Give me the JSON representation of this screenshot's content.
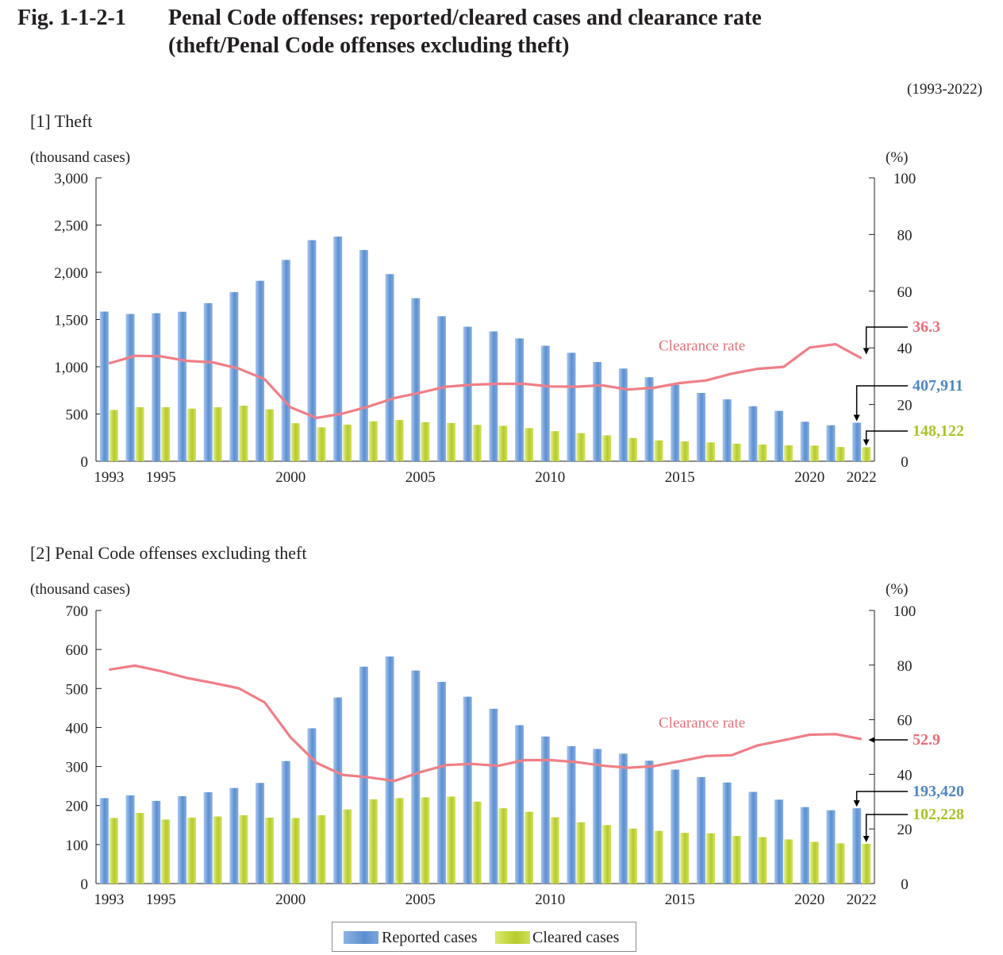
{
  "figure": {
    "number": "Fig. 1-1-2-1",
    "title_line1": "Penal Code offenses: reported/cleared cases and clearance rate",
    "title_line2": "(theft/Penal Code offenses excluding theft)",
    "period": "(1993-2022)"
  },
  "legend": {
    "reported": "Reported cases",
    "cleared": "Cleared cases"
  },
  "colors": {
    "reported": "#6f9fd8",
    "cleared": "#c2d63a",
    "rate": "#ef7f87",
    "reported_label": "#4f86c6",
    "cleared_label": "#a9c424",
    "rate_label": "#ea6d78"
  },
  "chart_data": [
    {
      "type": "bar",
      "panel_title": "[1] Theft",
      "left_unit": "(thousand cases)",
      "right_unit": "(%)",
      "ylim": [
        0,
        3000
      ],
      "ylim_right": [
        0,
        100
      ],
      "y_ticks": [
        "0",
        "500",
        "1,000",
        "1,500",
        "2,000",
        "2,500",
        "3,000"
      ],
      "y_right_ticks": [
        "0",
        "20",
        "40",
        "60",
        "80",
        "100"
      ],
      "x_tick_labels": [
        "1993",
        "1995",
        "2000",
        "2005",
        "2010",
        "2015",
        "2020",
        "2022"
      ],
      "categories": [
        1993,
        1994,
        1995,
        1996,
        1997,
        1998,
        1999,
        2000,
        2001,
        2002,
        2003,
        2004,
        2005,
        2006,
        2007,
        2008,
        2009,
        2010,
        2011,
        2012,
        2013,
        2014,
        2015,
        2016,
        2017,
        2018,
        2019,
        2020,
        2021,
        2022
      ],
      "series": [
        {
          "name": "Reported cases",
          "values": [
            1584,
            1559,
            1567,
            1582,
            1673,
            1790,
            1910,
            2131,
            2340,
            2378,
            2236,
            1981,
            1726,
            1535,
            1424,
            1374,
            1300,
            1222,
            1148,
            1050,
            981,
            889,
            808,
            723,
            655,
            582,
            533,
            418,
            381,
            408
          ]
        },
        {
          "name": "Cleared cases",
          "values": [
            542,
            572,
            572,
            557,
            571,
            588,
            550,
            402,
            359,
            388,
            423,
            437,
            413,
            405,
            385,
            375,
            350,
            318,
            298,
            274,
            246,
            221,
            210,
            199,
            186,
            177,
            168,
            165,
            150,
            148
          ]
        },
        {
          "name": "Clearance rate",
          "axis": "right",
          "values": [
            34.5,
            37.2,
            37.0,
            35.4,
            34.9,
            32.7,
            28.9,
            19.0,
            15.3,
            16.8,
            19.3,
            22.3,
            24.2,
            26.3,
            27.0,
            27.3,
            27.3,
            26.4,
            26.3,
            26.8,
            25.3,
            25.9,
            27.6,
            28.5,
            30.9,
            32.6,
            33.3,
            40.1,
            41.3,
            36.3
          ]
        }
      ],
      "callouts": {
        "rate": "36.3",
        "reported": "407,911",
        "cleared": "148,122"
      },
      "series_label": "Clearance rate"
    },
    {
      "type": "bar",
      "panel_title": "[2] Penal Code offenses excluding theft",
      "left_unit": "(thousand cases)",
      "right_unit": "(%)",
      "ylim": [
        0,
        700
      ],
      "ylim_right": [
        0,
        100
      ],
      "y_ticks": [
        "0",
        "100",
        "200",
        "300",
        "400",
        "500",
        "600",
        "700"
      ],
      "y_right_ticks": [
        "0",
        "20",
        "40",
        "60",
        "80",
        "100"
      ],
      "x_tick_labels": [
        "1993",
        "1995",
        "2000",
        "2005",
        "2010",
        "2015",
        "2020",
        "2022"
      ],
      "categories": [
        1993,
        1994,
        1995,
        1996,
        1997,
        1998,
        1999,
        2000,
        2001,
        2002,
        2003,
        2004,
        2005,
        2006,
        2007,
        2008,
        2009,
        2010,
        2011,
        2012,
        2013,
        2014,
        2015,
        2016,
        2017,
        2018,
        2019,
        2020,
        2021,
        2022
      ],
      "series": [
        {
          "name": "Reported cases",
          "values": [
            219,
            226,
            212,
            224,
            234,
            245,
            258,
            314,
            398,
            477,
            556,
            582,
            546,
            517,
            479,
            448,
            406,
            377,
            352,
            345,
            333,
            315,
            292,
            273,
            259,
            235,
            215,
            196,
            188,
            193
          ]
        },
        {
          "name": "Cleared cases",
          "values": [
            168,
            181,
            164,
            169,
            172,
            175,
            169,
            168,
            175,
            190,
            216,
            219,
            221,
            223,
            210,
            193,
            184,
            170,
            157,
            150,
            141,
            135,
            130,
            129,
            122,
            119,
            113,
            107,
            103,
            102
          ]
        },
        {
          "name": "Clearance rate",
          "axis": "right",
          "values": [
            78.3,
            79.8,
            77.8,
            75.3,
            73.5,
            71.5,
            66.3,
            53.5,
            44.2,
            39.8,
            38.9,
            37.6,
            40.8,
            43.4,
            43.8,
            43.1,
            45.2,
            45.2,
            44.5,
            43.2,
            42.4,
            43.0,
            44.8,
            46.7,
            47.0,
            50.6,
            52.5,
            54.5,
            54.7,
            52.9
          ]
        }
      ],
      "callouts": {
        "rate": "52.9",
        "reported": "193,420",
        "cleared": "102,228"
      },
      "series_label": "Clearance rate"
    }
  ]
}
